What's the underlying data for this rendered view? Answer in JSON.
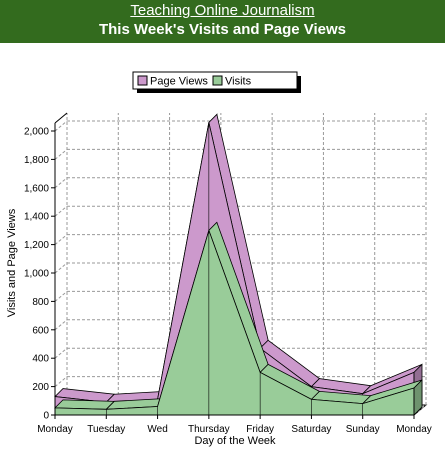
{
  "header": {
    "site_title": "Teaching Online Journalism",
    "chart_title": "This Week's Visits and Page Views",
    "background_color": "#336B1E"
  },
  "chart_data": {
    "type": "area",
    "categories": [
      "Monday",
      "Tuesday",
      "Wed",
      "Thursday",
      "Friday",
      "Saturday",
      "Sunday",
      "Monday"
    ],
    "series": [
      {
        "name": "Page Views",
        "values": [
          130,
          90,
          110,
          2060,
          470,
          200,
          150,
          300
        ],
        "color": "#CC99CC"
      },
      {
        "name": "Visits",
        "values": [
          50,
          40,
          60,
          1300,
          300,
          110,
          80,
          190
        ],
        "color": "#99CC99"
      }
    ],
    "xlabel": "Day of the Week",
    "ylabel": "Visits and Page Views",
    "ylim": [
      0,
      2000
    ],
    "yticks": [
      0,
      200,
      400,
      600,
      800,
      "1,000",
      "1,200",
      "1,400",
      "1,600",
      "1,800",
      "2,000"
    ],
    "grid": true,
    "legend_position": "top",
    "three_d": true
  }
}
